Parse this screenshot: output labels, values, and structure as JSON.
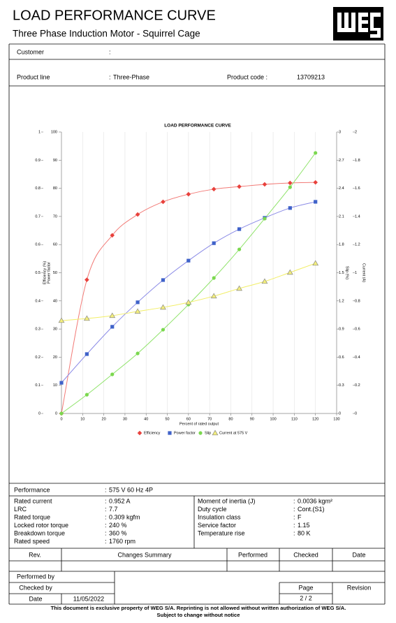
{
  "header": {
    "title": "LOAD PERFORMANCE CURVE",
    "subtitle": "Three Phase Induction Motor - Squirrel Cage"
  },
  "customer": {
    "label": "Customer",
    "value": ""
  },
  "product": {
    "line_label": "Product line",
    "line_value": "Three-Phase",
    "code_label": "Product code :",
    "code_value": "13709213"
  },
  "chart_data": {
    "type": "line",
    "title": "LOAD PERFORMANCE CURVE",
    "x_label": "Percent of rated output",
    "xlim": [
      0,
      130
    ],
    "xticks": [
      0,
      10,
      20,
      30,
      40,
      50,
      60,
      70,
      80,
      90,
      100,
      110,
      120,
      130
    ],
    "grid": "x",
    "legend": "bottom",
    "yaxes": [
      {
        "label": "Power factor",
        "lim": [
          0,
          1
        ],
        "ticks": [
          0,
          0.1,
          0.2,
          0.3,
          0.4,
          0.5,
          0.6,
          0.7,
          0.8,
          0.9,
          1
        ]
      },
      {
        "label": "Efficiency (%)",
        "lim": [
          0,
          100
        ],
        "ticks": [
          0,
          10,
          20,
          30,
          40,
          50,
          60,
          70,
          80,
          90,
          100
        ]
      },
      {
        "label": "Slip (%)",
        "lim": [
          0,
          3
        ],
        "ticks": [
          0,
          0.3,
          0.6,
          0.9,
          1.2,
          1.5,
          1.8,
          2.1,
          2.4,
          2.7,
          3
        ]
      },
      {
        "label": "Current (A)",
        "lim": [
          0,
          2
        ],
        "ticks": [
          0,
          0.2,
          0.4,
          0.6,
          0.8,
          1,
          1.2,
          1.4,
          1.6,
          1.8,
          2
        ]
      }
    ],
    "x": [
      0,
      12,
      24,
      36,
      48,
      60,
      72,
      84,
      96,
      108,
      120
    ],
    "series": [
      {
        "name": "Efficiency",
        "color": "#e8413c",
        "line_color": "#f27a76",
        "marker": "diamond",
        "axis": 1,
        "values": [
          0,
          47.5,
          63.3,
          70.7,
          75.2,
          77.9,
          79.7,
          80.6,
          81.4,
          81.9,
          82.1
        ]
      },
      {
        "name": "Power factor",
        "color": "#3f62c9",
        "line_color": "#8a8ae6",
        "marker": "square",
        "axis": 0,
        "values": [
          0.109,
          0.211,
          0.308,
          0.395,
          0.474,
          0.543,
          0.605,
          0.655,
          0.695,
          0.73,
          0.752
        ]
      },
      {
        "name": "Slip",
        "color": "#7bd84f",
        "line_color": "#8fe36a",
        "marker": "circle",
        "axis": 2,
        "values": [
          0,
          0.2,
          0.417,
          0.64,
          0.893,
          1.161,
          1.444,
          1.749,
          2.077,
          2.412,
          2.777
        ]
      },
      {
        "name": "Current at 575 V",
        "color": "#f4ef7c",
        "line_color": "#f2ee66",
        "marker": "triangle",
        "axis": 3,
        "values": [
          0.66,
          0.675,
          0.695,
          0.725,
          0.754,
          0.789,
          0.834,
          0.888,
          0.938,
          1.002,
          1.067
        ]
      }
    ]
  },
  "performance": {
    "label": "Performance",
    "value": "575 V 60 Hz 4P"
  },
  "details": {
    "left": [
      [
        "Rated current",
        "0.952 A"
      ],
      [
        "LRC",
        "7.7"
      ],
      [
        "Rated torque",
        "0.309 kgfm"
      ],
      [
        "Locked rotor torque",
        "240 %"
      ],
      [
        "Breakdown torque",
        "360 %"
      ],
      [
        "Rated speed",
        "1760 rpm"
      ]
    ],
    "right": [
      [
        "Moment of inertia (J)",
        "0.0036 kgm²"
      ],
      [
        "Duty cycle",
        "Cont.(S1)"
      ],
      [
        "Insulation class",
        "F"
      ],
      [
        "Service factor",
        "1.15"
      ],
      [
        "Temperature rise",
        "80 K"
      ]
    ]
  },
  "revisions": {
    "headers": [
      "Rev.",
      "Changes Summary",
      "Performed",
      "Checked",
      "Date"
    ]
  },
  "signoff": {
    "performed_by": "Performed by",
    "checked_by": "Checked by",
    "date_label": "Date",
    "date_value": "11/05/2022",
    "page_label": "Page",
    "page_value": "2 / 2",
    "revision_label": "Revision"
  },
  "footer": {
    "line1": "This document is exclusive property of WEG S/A. Reprinting is not allowed without written authorization of WEG S/A.",
    "line2": "Subject to change without notice"
  }
}
